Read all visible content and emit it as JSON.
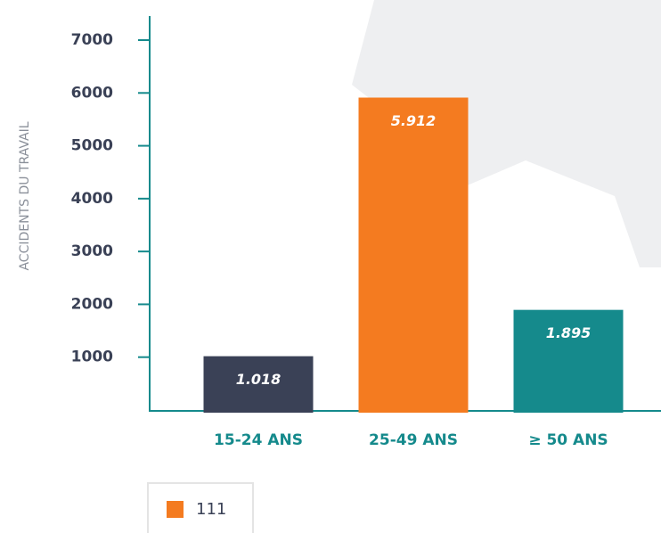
{
  "chart_data": {
    "type": "bar",
    "y_label": "ACCIDENTS DU TRAVAIL",
    "categories": [
      "15-24 ANS",
      "25-49 ANS",
      "≥ 50 ANS"
    ],
    "values": [
      1018,
      5912,
      1895
    ],
    "value_labels": [
      "1.018",
      "5.912",
      "1.895"
    ],
    "colors": [
      "#3a4156",
      "#f47b20",
      "#158a8c"
    ],
    "ylim": [
      0,
      7000
    ],
    "yticks": [
      1000,
      2000,
      3000,
      4000,
      5000,
      6000,
      7000
    ],
    "legend": {
      "label": "111",
      "color": "#f47b20"
    }
  }
}
